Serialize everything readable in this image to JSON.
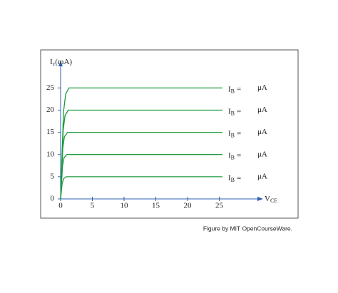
{
  "chart_data": {
    "type": "line",
    "y_label": {
      "main": "I",
      "sub": "c",
      "rest": "(mA)"
    },
    "x_label": {
      "main": "V",
      "sub": "CE"
    },
    "caption": "Figure by MIT OpenCourseWare.",
    "xlim": [
      0,
      31.8
    ],
    "ylim": [
      0,
      31
    ],
    "xticks": [
      0,
      5,
      10,
      15,
      20,
      25
    ],
    "yticks": [
      0,
      5,
      10,
      15,
      20,
      25
    ],
    "series": [
      {
        "label_main": "I",
        "label_sub": "B",
        "label_eq": "=",
        "label_unit": "μA",
        "color": "#1a9a3a",
        "x": [
          0,
          0.25,
          0.5,
          0.9,
          25.5
        ],
        "values": [
          0,
          3.5,
          4.6,
          5,
          5
        ]
      },
      {
        "label_main": "I",
        "label_sub": "B",
        "label_eq": "=",
        "label_unit": "μA",
        "color": "#1a9a3a",
        "x": [
          0,
          0.3,
          0.55,
          1.0,
          25.5
        ],
        "values": [
          0,
          7.5,
          9.3,
          10,
          10
        ]
      },
      {
        "label_main": "I",
        "label_sub": "B",
        "label_eq": "=",
        "label_unit": "μA",
        "color": "#1a9a3a",
        "x": [
          0,
          0.35,
          0.6,
          1.1,
          25.5
        ],
        "values": [
          0,
          11.5,
          14,
          15,
          15
        ]
      },
      {
        "label_main": "I",
        "label_sub": "B",
        "label_eq": "=",
        "label_unit": "μA",
        "color": "#1a9a3a",
        "x": [
          0,
          0.4,
          0.7,
          1.2,
          25.5
        ],
        "values": [
          0,
          15.5,
          18.8,
          20,
          20
        ]
      },
      {
        "label_main": "I",
        "label_sub": "B",
        "label_eq": "=",
        "label_unit": "μA",
        "color": "#1a9a3a",
        "x": [
          0,
          0.45,
          0.8,
          1.3,
          25.5
        ],
        "values": [
          0,
          19.5,
          23.6,
          25,
          25
        ]
      }
    ]
  }
}
